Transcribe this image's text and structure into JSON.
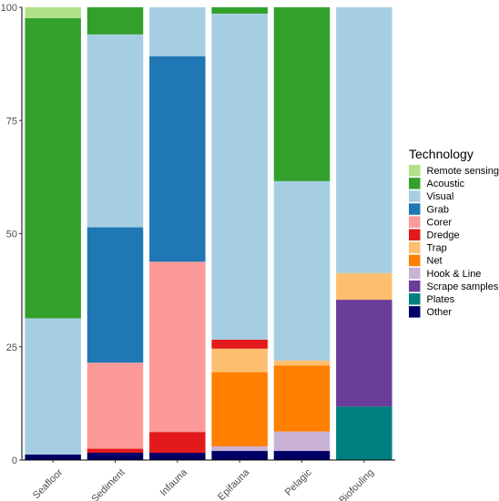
{
  "chart_data": {
    "type": "bar",
    "stacked": true,
    "categories": [
      "Seafloor",
      "Sediment",
      "Infauna",
      "Epifauna",
      "Pelagic",
      "Biofouling"
    ],
    "ylim": [
      0,
      100
    ],
    "yticks": [
      0,
      25,
      50,
      75,
      100
    ],
    "xlabel": "",
    "ylabel": "",
    "grid": false,
    "legend": {
      "title": "Technology",
      "position": "right"
    },
    "series": [
      {
        "name": "Other",
        "color": "#000066",
        "values": [
          1.2,
          1.6,
          1.6,
          2.0,
          2.0,
          0
        ]
      },
      {
        "name": "Plates",
        "color": "#008080",
        "values": [
          0,
          0,
          0,
          0,
          0,
          11.8
        ]
      },
      {
        "name": "Scrape samples",
        "color": "#6a3d9a",
        "values": [
          0,
          0,
          0,
          0,
          0,
          23.6
        ]
      },
      {
        "name": "Hook & Line",
        "color": "#cab2d6",
        "values": [
          0,
          0,
          0,
          1.0,
          4.3,
          0
        ]
      },
      {
        "name": "Net",
        "color": "#ff7f00",
        "values": [
          0,
          0,
          0,
          16.4,
          14.6,
          0
        ]
      },
      {
        "name": "Trap",
        "color": "#fdbf6f",
        "values": [
          0,
          0,
          0,
          5.2,
          1.1,
          5.9
        ]
      },
      {
        "name": "Dredge",
        "color": "#e31a1c",
        "values": [
          0,
          0.9,
          4.6,
          2.0,
          0,
          0
        ]
      },
      {
        "name": "Corer",
        "color": "#fb9a99",
        "values": [
          0,
          19.0,
          37.6,
          0,
          0,
          0
        ]
      },
      {
        "name": "Grab",
        "color": "#1f78b4",
        "values": [
          0,
          29.9,
          45.4,
          0,
          0,
          0
        ]
      },
      {
        "name": "Visual",
        "color": "#a6cee3",
        "values": [
          30.1,
          42.6,
          10.8,
          72.0,
          39.6,
          58.7
        ]
      },
      {
        "name": "Acoustic",
        "color": "#33a02c",
        "values": [
          66.3,
          6.0,
          0,
          1.4,
          38.4,
          0
        ]
      },
      {
        "name": "Remote sensing",
        "color": "#b2df8a",
        "values": [
          2.4,
          0,
          0,
          0,
          0,
          0
        ]
      }
    ],
    "legend_order": [
      "Remote sensing",
      "Acoustic",
      "Visual",
      "Grab",
      "Corer",
      "Dredge",
      "Trap",
      "Net",
      "Hook & Line",
      "Scrape samples",
      "Plates",
      "Other"
    ]
  }
}
